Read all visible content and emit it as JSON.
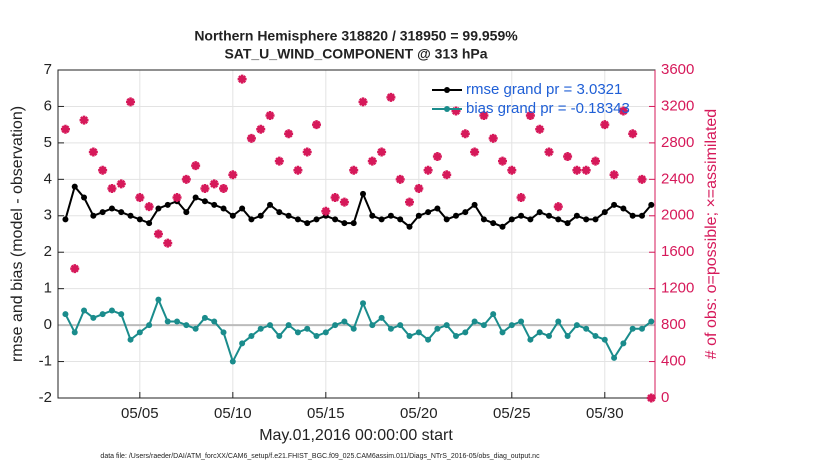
{
  "chart_data": {
    "type": "line",
    "title": "Northern Hemisphere 318820 / 318950 = 99.959%",
    "subtitle": "SAT_U_WIND_COMPONENT @ 313 hPa",
    "x_label": "May.01,2016 00:00:00 start",
    "y_label": "rmse and bias (model - observation)",
    "y2_label": "# of obs: o=possible; ×=assimilated",
    "footnote": "data file: /Users/raeder/DAI/ATM_forcXX/CAM6_setup/f.e21.FHIST_BGC.f09_025.CAM6assim.011/Diags_NTrS_2016-05/obs_diag_output.nc",
    "legend_position": "upper right",
    "grid": true,
    "x": [
      0,
      0.5,
      1,
      1.5,
      2,
      2.5,
      3,
      3.5,
      4,
      4.5,
      5,
      5.5,
      6,
      6.5,
      7,
      7.5,
      8,
      8.5,
      9,
      9.5,
      10,
      10.5,
      11,
      11.5,
      12,
      12.5,
      13,
      13.5,
      14,
      14.5,
      15,
      15.5,
      16,
      16.5,
      17,
      17.5,
      18,
      18.5,
      19,
      19.5,
      20,
      20.5,
      21,
      21.5,
      22,
      22.5,
      23,
      23.5,
      24,
      24.5,
      25,
      25.5,
      26,
      26.5,
      27,
      27.5,
      28,
      28.5,
      29,
      29.5,
      30,
      30.5,
      31,
      31.5
    ],
    "xlim": [
      -0.4,
      31.7
    ],
    "xticks": [
      {
        "value": 4,
        "label": "05/05"
      },
      {
        "value": 9,
        "label": "05/10"
      },
      {
        "value": 14,
        "label": "05/15"
      },
      {
        "value": 19,
        "label": "05/20"
      },
      {
        "value": 24,
        "label": "05/25"
      },
      {
        "value": 29,
        "label": "05/30"
      }
    ],
    "ylim": [
      -2,
      7
    ],
    "yticks": [
      -2,
      -1,
      0,
      1,
      2,
      3,
      4,
      5,
      6,
      7
    ],
    "y2lim": [
      0,
      3600
    ],
    "y2ticks": [
      0,
      400,
      800,
      1200,
      1600,
      2000,
      2400,
      2800,
      3200,
      3600
    ],
    "y2_color": "#d6195a",
    "series": [
      {
        "name": "rmse grand pr = 3.0321",
        "color": "#000000",
        "values": [
          2.9,
          3.8,
          3.5,
          3.0,
          3.1,
          3.2,
          3.1,
          3.0,
          2.9,
          2.8,
          3.2,
          3.3,
          3.4,
          3.1,
          3.5,
          3.4,
          3.3,
          3.2,
          3.0,
          3.2,
          2.9,
          3.0,
          3.3,
          3.1,
          3.0,
          2.9,
          2.8,
          2.9,
          3.0,
          2.9,
          2.8,
          2.8,
          3.6,
          3.0,
          2.9,
          3.0,
          2.9,
          2.7,
          3.0,
          3.1,
          3.2,
          2.9,
          3.0,
          3.1,
          3.3,
          2.9,
          2.8,
          2.7,
          2.9,
          3.0,
          2.9,
          3.1,
          3.0,
          2.9,
          2.8,
          3.0,
          2.9,
          2.9,
          3.1,
          3.3,
          3.2,
          3.0,
          3.0,
          3.3
        ]
      },
      {
        "name": "bias grand pr = -0.18343",
        "color": "#1a8c8c",
        "values": [
          0.3,
          -0.2,
          0.4,
          0.2,
          0.3,
          0.4,
          0.3,
          -0.4,
          -0.2,
          0.0,
          0.7,
          0.1,
          0.1,
          0.0,
          -0.1,
          0.2,
          0.1,
          -0.2,
          -1.0,
          -0.5,
          -0.3,
          -0.1,
          0.0,
          -0.3,
          0.0,
          -0.2,
          -0.1,
          -0.3,
          -0.2,
          0.0,
          0.1,
          -0.1,
          0.6,
          0.0,
          0.2,
          -0.1,
          0.0,
          -0.3,
          -0.2,
          -0.4,
          -0.1,
          0.0,
          -0.3,
          -0.2,
          0.1,
          0.0,
          0.3,
          -0.2,
          0.0,
          0.1,
          -0.4,
          -0.2,
          -0.3,
          0.1,
          -0.3,
          0.0,
          -0.1,
          -0.3,
          -0.4,
          -0.9,
          -0.5,
          -0.1,
          -0.1,
          0.1
        ]
      },
      {
        "color": "#d6195a",
        "axis": "y2",
        "values": [
          2950,
          1420,
          3050,
          2700,
          2500,
          2300,
          2350,
          3250,
          2200,
          2100,
          1800,
          1700,
          2200,
          2400,
          2550,
          2300,
          2350,
          2300,
          2450,
          3500,
          2850,
          2950,
          3100,
          2600,
          2900,
          2500,
          2700,
          3000,
          2050,
          2200,
          2150,
          2500,
          3250,
          2600,
          2700,
          3300,
          2400,
          2150,
          2300,
          2500,
          2650,
          2450,
          3150,
          2900,
          2700,
          3100,
          2850,
          2600,
          2500,
          2200,
          3100,
          2950,
          2700,
          2100,
          2650,
          2500,
          2500,
          2600,
          3000,
          2450,
          3150,
          2900,
          2400,
          0
        ]
      }
    ]
  }
}
